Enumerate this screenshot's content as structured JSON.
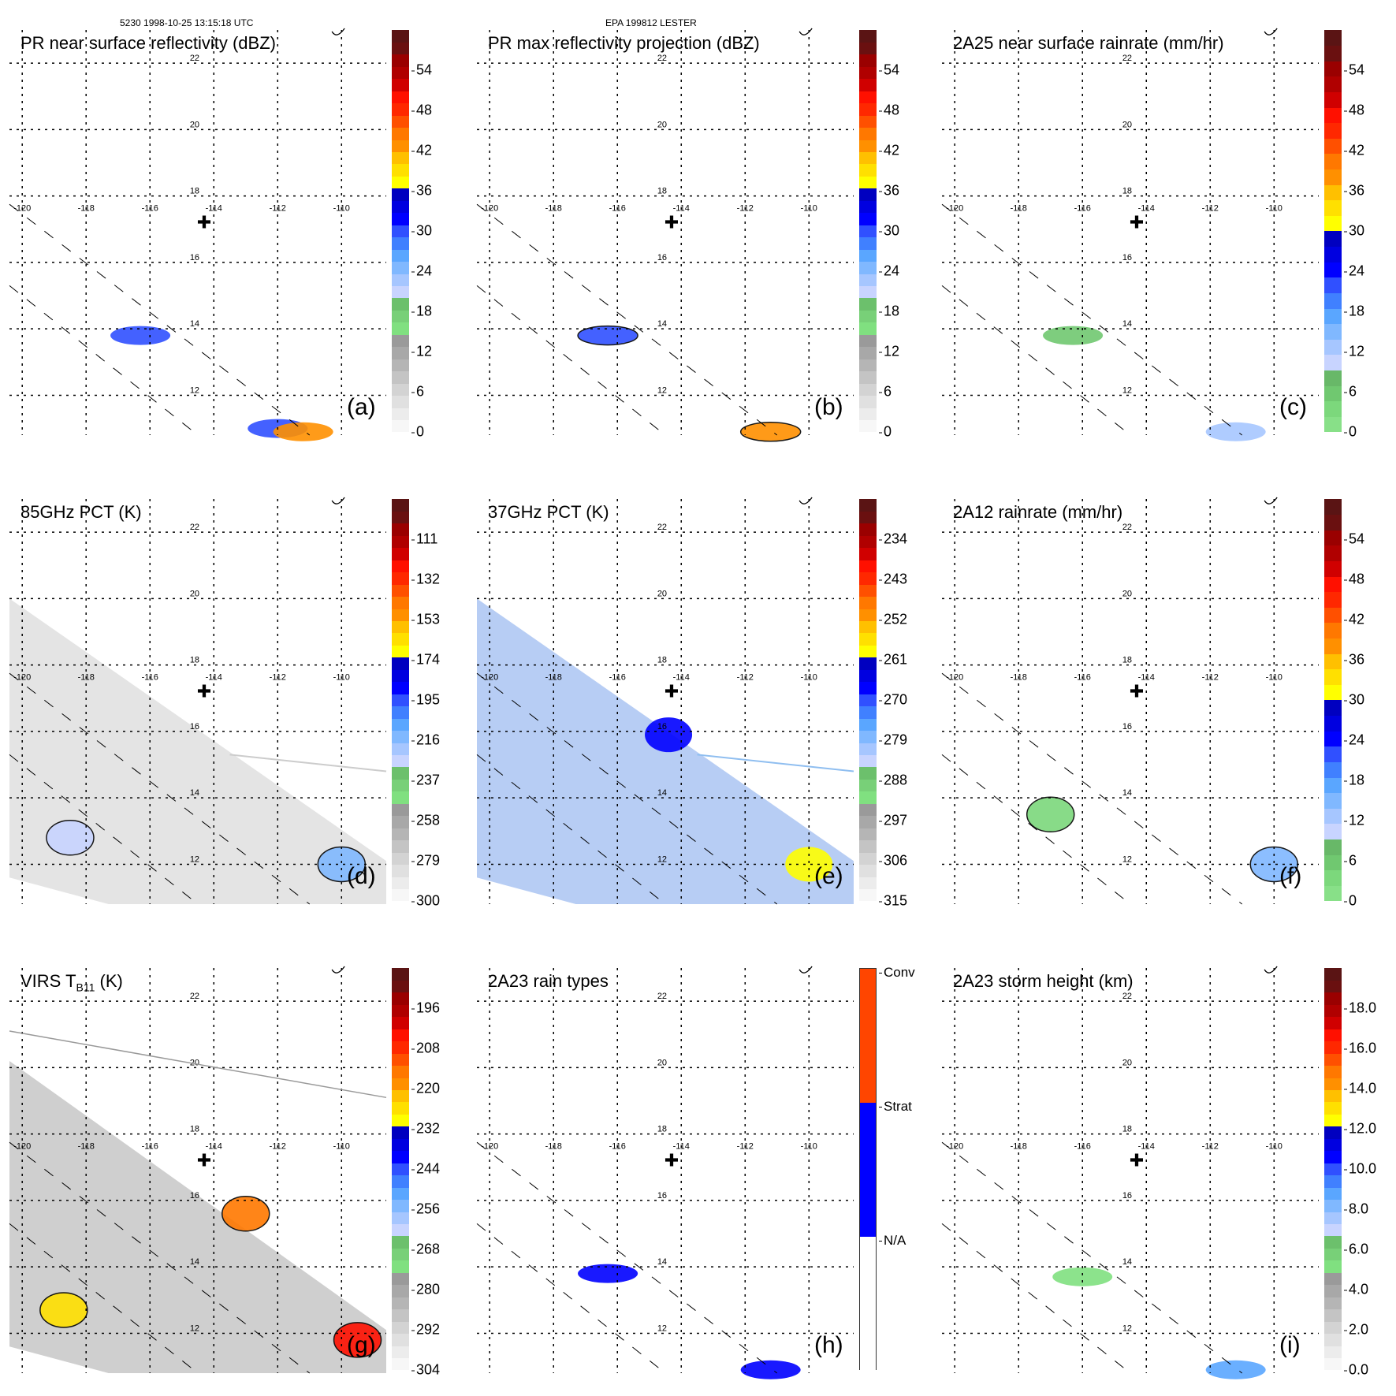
{
  "header": {
    "left": "5230 1998-10-25 13:15:18 UTC",
    "center": "EPA 199812 LESTER"
  },
  "map": {
    "lon_ticks": [
      "-120",
      "-118",
      "-116",
      "-114",
      "-112",
      "-110"
    ],
    "lat_ticks": [
      "22",
      "20",
      "18",
      "16",
      "14",
      "12"
    ],
    "lon_range": [
      -120.4,
      -108.6
    ],
    "lat_range": [
      10.8,
      23.0
    ],
    "center_marker": {
      "lon": -114.3,
      "lat": 17.2,
      "symbol": "✚"
    }
  },
  "chart_data": [
    {
      "id": "a",
      "type": "heatmap",
      "title": "PR near surface reflectivity (dBZ)",
      "panel_label": "(a)",
      "colorbar": {
        "ticks": [
          "54",
          "48",
          "42",
          "36",
          "30",
          "24",
          "18",
          "12",
          "6",
          "0"
        ],
        "min": 0,
        "max": 60,
        "kind": "standard"
      },
      "swath": "pr",
      "features": [
        {
          "lon": -116.3,
          "lat": 13.8,
          "value": 30
        },
        {
          "lon": -112.0,
          "lat": 11.0,
          "value": 30
        },
        {
          "lon": -111.2,
          "lat": 10.9,
          "value": 42
        }
      ]
    },
    {
      "id": "b",
      "type": "heatmap",
      "title": "PR max reflectivity projection (dBZ)",
      "panel_label": "(b)",
      "colorbar": {
        "ticks": [
          "54",
          "48",
          "42",
          "36",
          "30",
          "24",
          "18",
          "12",
          "6",
          "0"
        ],
        "min": 0,
        "max": 60,
        "kind": "standard"
      },
      "swath": "pr",
      "features": [
        {
          "lon": -116.3,
          "lat": 13.8,
          "value": 30
        },
        {
          "lon": -111.2,
          "lat": 10.9,
          "value": 42
        }
      ]
    },
    {
      "id": "c",
      "type": "heatmap",
      "title": "2A25 near surface rainrate (mm/hr)",
      "panel_label": "(c)",
      "colorbar": {
        "ticks": [
          "54",
          "48",
          "42",
          "36",
          "30",
          "24",
          "18",
          "12",
          "6",
          "0"
        ],
        "min": 0,
        "max": 60,
        "kind": "rain"
      },
      "swath": "pr",
      "features": [
        {
          "lon": -116.3,
          "lat": 13.8,
          "value": 6
        },
        {
          "lon": -111.2,
          "lat": 10.9,
          "value": 12
        }
      ]
    },
    {
      "id": "d",
      "type": "heatmap",
      "title": "85GHz PCT (K)",
      "panel_label": "(d)",
      "colorbar": {
        "ticks": [
          "111",
          "132",
          "153",
          "174",
          "195",
          "216",
          "237",
          "258",
          "279",
          "300"
        ],
        "min": 90,
        "max": 300,
        "kind": "standard"
      },
      "swath": "tmi",
      "fill": "#e4e4e4",
      "features": [
        {
          "lon": -110,
          "lat": 12,
          "value": 216
        },
        {
          "lon": -118.5,
          "lat": 12.8,
          "value": 230
        }
      ]
    },
    {
      "id": "e",
      "type": "heatmap",
      "title": "37GHz PCT (K)",
      "panel_label": "(e)",
      "colorbar": {
        "ticks": [
          "234",
          "243",
          "252",
          "261",
          "270",
          "279",
          "288",
          "297",
          "306",
          "315"
        ],
        "min": 225,
        "max": 315,
        "kind": "standard"
      },
      "swath": "tmi",
      "fill": "#b7cdf4",
      "features": [
        {
          "lon": -110,
          "lat": 12,
          "value": 258
        },
        {
          "lon": -114.4,
          "lat": 15.9,
          "value": 268
        }
      ]
    },
    {
      "id": "f",
      "type": "heatmap",
      "title": "2A12 rainrate (mm/hr)",
      "panel_label": "(f)",
      "colorbar": {
        "ticks": [
          "54",
          "48",
          "42",
          "36",
          "30",
          "24",
          "18",
          "12",
          "6",
          "0"
        ],
        "min": 0,
        "max": 60,
        "kind": "rain"
      },
      "swath": "tmi",
      "features": [
        {
          "lon": -117,
          "lat": 13.5,
          "value": 4
        },
        {
          "lon": -110,
          "lat": 12,
          "value": 15
        }
      ]
    },
    {
      "id": "g",
      "type": "heatmap",
      "title": "VIRS T",
      "title_sub": "B11",
      "title_tail": " (K)",
      "panel_label": "(g)",
      "colorbar": {
        "ticks": [
          "196",
          "208",
          "220",
          "232",
          "244",
          "256",
          "268",
          "280",
          "292",
          "304"
        ],
        "min": 184,
        "max": 304,
        "kind": "standard"
      },
      "swath": "virs",
      "fill": "#cfcfcf",
      "features": [
        {
          "lon": -109.5,
          "lat": 11.8,
          "value": 205
        },
        {
          "lon": -113,
          "lat": 15.6,
          "value": 215
        },
        {
          "lon": -118.7,
          "lat": 12.7,
          "value": 225
        }
      ]
    },
    {
      "id": "h",
      "type": "heatmap",
      "title": "2A23 rain types",
      "panel_label": "(h)",
      "colorbar": {
        "ticks": [
          "Conv",
          "Strat",
          "N/A"
        ],
        "categories": [
          {
            "label": "Conv",
            "color": "#ff4500"
          },
          {
            "label": "Strat",
            "color": "#0000ff"
          },
          {
            "label": "N/A",
            "color": "#ffffff"
          }
        ],
        "kind": "categorical"
      },
      "swath": "pr",
      "features": [
        {
          "lon": -116.3,
          "lat": 13.8,
          "value": "Strat"
        },
        {
          "lon": -111.2,
          "lat": 10.9,
          "value": "Strat"
        }
      ]
    },
    {
      "id": "i",
      "type": "heatmap",
      "title": "2A23 storm height (km)",
      "panel_label": "(i)",
      "colorbar": {
        "ticks": [
          "18.0",
          "16.0",
          "14.0",
          "12.0",
          "10.0",
          "8.0",
          "6.0",
          "4.0",
          "2.0",
          "0.0"
        ],
        "min": 0,
        "max": 20,
        "kind": "standard"
      },
      "swath": "pr",
      "features": [
        {
          "lon": -116,
          "lat": 13.7,
          "value": 5
        },
        {
          "lon": -111.2,
          "lat": 10.9,
          "value": 9
        }
      ]
    }
  ],
  "colors": {
    "standard": [
      "#f7f7f7",
      "#ececec",
      "#e0e0e0",
      "#d3d3d3",
      "#c4c4c4",
      "#b5b5b5",
      "#a8a8a8",
      "#9a9a9a",
      "#80e080",
      "#78d078",
      "#6cc06c",
      "#c8d4ff",
      "#a6c6ff",
      "#80b8ff",
      "#5aa6ff",
      "#4080ff",
      "#3050ff",
      "#0000ff",
      "#0000e0",
      "#0000c0",
      "#ffff00",
      "#ffe000",
      "#ffc000",
      "#ff9000",
      "#ff7800",
      "#ff5000",
      "#ff2800",
      "#ff1000",
      "#d00000",
      "#b00000",
      "#9a0000",
      "#6a1010",
      "#5a1414"
    ],
    "rain": [
      "#88e088",
      "#7cd87c",
      "#70c870",
      "#68b868",
      "#c8d4ff",
      "#a6c6ff",
      "#80b8ff",
      "#5aa6ff",
      "#4080ff",
      "#3050ff",
      "#0000ff",
      "#0000e0",
      "#0000c0",
      "#ffff00",
      "#ffe000",
      "#ffc000",
      "#ff9000",
      "#ff7800",
      "#ff5000",
      "#ff2800",
      "#ff1000",
      "#d00000",
      "#b00000",
      "#9a0000",
      "#6a1010",
      "#5a1414"
    ]
  }
}
